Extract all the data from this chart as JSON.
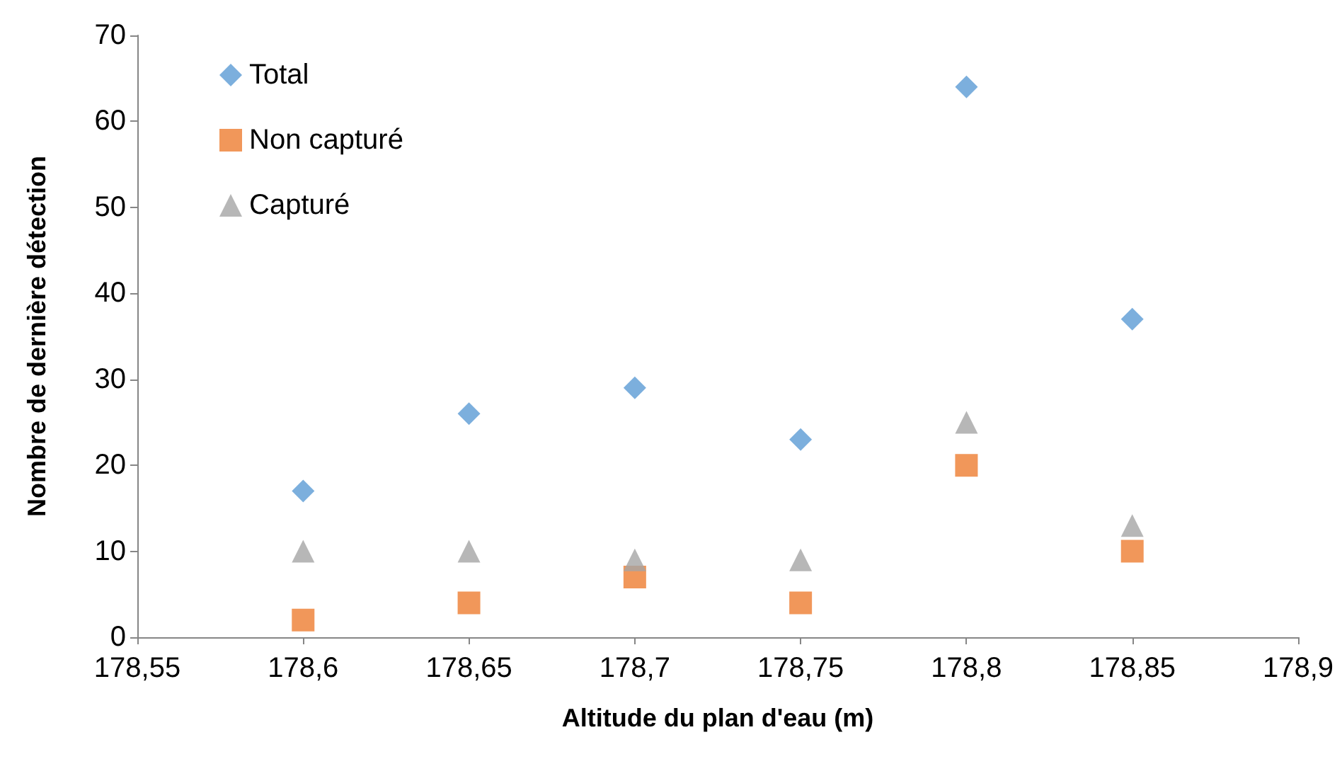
{
  "chart_data": {
    "type": "scatter",
    "xlabel": "Altitude du plan d'eau (m)",
    "ylabel": "Nombre de dernière détection",
    "series": [
      {
        "name": "Total",
        "color": "#5b9bd5",
        "marker": "diamond",
        "x": [
          178.6,
          178.65,
          178.7,
          178.75,
          178.8,
          178.85
        ],
        "values": [
          17,
          26,
          29,
          23,
          64,
          37
        ]
      },
      {
        "name": "Non capturé",
        "color": "#ed7d31",
        "marker": "square",
        "x": [
          178.6,
          178.65,
          178.7,
          178.75,
          178.8,
          178.85
        ],
        "values": [
          2,
          4,
          7,
          4,
          20,
          10
        ]
      },
      {
        "name": "Capturé",
        "color": "#a5a5a5",
        "marker": "triangle",
        "x": [
          178.6,
          178.65,
          178.7,
          178.75,
          178.8,
          178.85
        ],
        "values": [
          10,
          10,
          9,
          9,
          25,
          13
        ]
      }
    ],
    "xlim": [
      178.55,
      178.9
    ],
    "xticks": [
      {
        "value": 178.55,
        "label": "178,55"
      },
      {
        "value": 178.6,
        "label": "178,6"
      },
      {
        "value": 178.65,
        "label": "178,65"
      },
      {
        "value": 178.7,
        "label": "178,7"
      },
      {
        "value": 178.75,
        "label": "178,75"
      },
      {
        "value": 178.8,
        "label": "178,8"
      },
      {
        "value": 178.85,
        "label": "178,85"
      },
      {
        "value": 178.9,
        "label": "178,9"
      }
    ],
    "ylim": [
      0,
      70
    ],
    "yticks": [
      0,
      10,
      20,
      30,
      40,
      50,
      60,
      70
    ],
    "grid": false,
    "legend": "top left"
  }
}
